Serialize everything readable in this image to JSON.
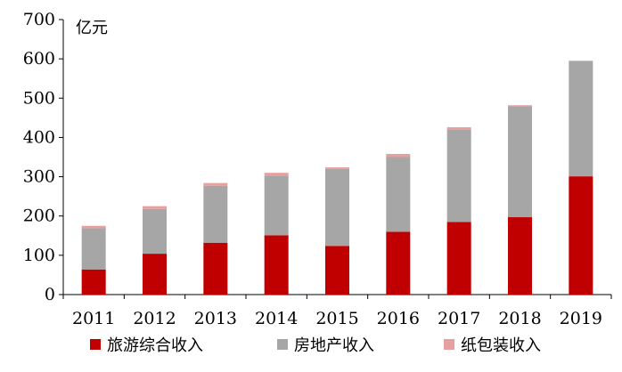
{
  "chart_data": {
    "type": "bar",
    "stacked": true,
    "unit_label": "亿元",
    "categories": [
      "2011",
      "2012",
      "2013",
      "2014",
      "2015",
      "2016",
      "2017",
      "2018",
      "2019"
    ],
    "series": [
      {
        "name": "旅游综合收入",
        "color": "#C00000",
        "values": [
          64,
          104,
          132,
          151,
          124,
          160,
          185,
          197,
          301
        ]
      },
      {
        "name": "房地产收入",
        "color": "#A6A6A6",
        "values": [
          105,
          114,
          145,
          152,
          196,
          190,
          235,
          282,
          294
        ]
      },
      {
        "name": "纸包装收入",
        "color": "#E6A0A0",
        "values": [
          6,
          7,
          7,
          7,
          4,
          8,
          6,
          3,
          0
        ]
      }
    ],
    "yticks": [
      0,
      100,
      200,
      300,
      400,
      500,
      600,
      700
    ],
    "ylim": [
      0,
      700
    ],
    "legend_position": "bottom",
    "grid": false
  }
}
